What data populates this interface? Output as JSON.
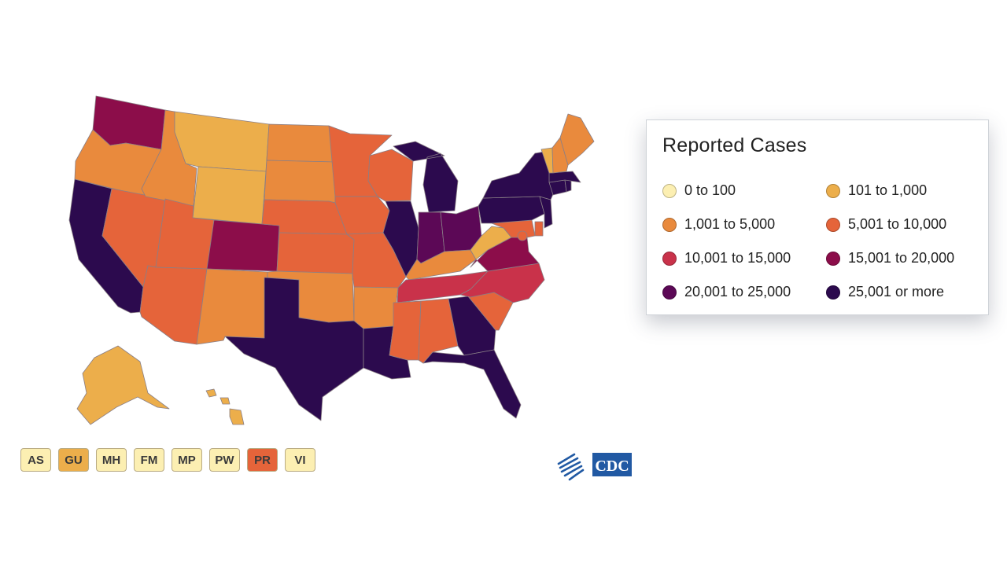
{
  "legend": {
    "title": "Reported Cases",
    "items": [
      {
        "label": "0 to 100",
        "color": "#fcefb2"
      },
      {
        "label": "101 to 1,000",
        "color": "#ecae4b"
      },
      {
        "label": "1,001 to 5,000",
        "color": "#e98a3d"
      },
      {
        "label": "5,001 to 10,000",
        "color": "#e5643a"
      },
      {
        "label": "10,001 to 15,000",
        "color": "#c9324a"
      },
      {
        "label": "15,001 to 20,000",
        "color": "#8c0d4a"
      },
      {
        "label": "20,001 to 25,000",
        "color": "#5c0856"
      },
      {
        "label": "25,001 or more",
        "color": "#2c0a4e"
      }
    ]
  },
  "territories": [
    {
      "label": "AS",
      "color": "#fcefb2"
    },
    {
      "label": "GU",
      "color": "#ecae4b"
    },
    {
      "label": "MH",
      "color": "#fcefb2"
    },
    {
      "label": "FM",
      "color": "#fcefb2"
    },
    {
      "label": "MP",
      "color": "#fcefb2"
    },
    {
      "label": "PW",
      "color": "#fcefb2"
    },
    {
      "label": "PR",
      "color": "#e5643a"
    },
    {
      "label": "VI",
      "color": "#fcefb2"
    }
  ],
  "states": [
    {
      "id": "WA",
      "level": 5
    },
    {
      "id": "OR",
      "level": 2
    },
    {
      "id": "CA",
      "level": 7
    },
    {
      "id": "NV",
      "level": 3
    },
    {
      "id": "ID",
      "level": 2
    },
    {
      "id": "MT",
      "level": 1
    },
    {
      "id": "WY",
      "level": 1
    },
    {
      "id": "UT",
      "level": 3
    },
    {
      "id": "AZ",
      "level": 3
    },
    {
      "id": "CO",
      "level": 5
    },
    {
      "id": "NM",
      "level": 2
    },
    {
      "id": "ND",
      "level": 2
    },
    {
      "id": "SD",
      "level": 2
    },
    {
      "id": "NE",
      "level": 3
    },
    {
      "id": "KS",
      "level": 3
    },
    {
      "id": "OK",
      "level": 2
    },
    {
      "id": "TX",
      "level": 7
    },
    {
      "id": "MN",
      "level": 3
    },
    {
      "id": "IA",
      "level": 3
    },
    {
      "id": "MO",
      "level": 3
    },
    {
      "id": "AR",
      "level": 2
    },
    {
      "id": "LA",
      "level": 7
    },
    {
      "id": "WI",
      "level": 3
    },
    {
      "id": "IL",
      "level": 7
    },
    {
      "id": "MI",
      "level": 7
    },
    {
      "id": "IN",
      "level": 6
    },
    {
      "id": "OH",
      "level": 6
    },
    {
      "id": "KY",
      "level": 2
    },
    {
      "id": "TN",
      "level": 4
    },
    {
      "id": "MS",
      "level": 3
    },
    {
      "id": "AL",
      "level": 3
    },
    {
      "id": "GA",
      "level": 7
    },
    {
      "id": "FL",
      "level": 7
    },
    {
      "id": "SC",
      "level": 3
    },
    {
      "id": "NC",
      "level": 4
    },
    {
      "id": "VA",
      "level": 5
    },
    {
      "id": "WV",
      "level": 1
    },
    {
      "id": "MD",
      "level": 3
    },
    {
      "id": "DE",
      "level": 3
    },
    {
      "id": "DC",
      "level": 3
    },
    {
      "id": "PA",
      "level": 7
    },
    {
      "id": "NJ",
      "level": 7
    },
    {
      "id": "NY",
      "level": 7
    },
    {
      "id": "CT",
      "level": 7
    },
    {
      "id": "RI",
      "level": 7
    },
    {
      "id": "MA",
      "level": 7
    },
    {
      "id": "VT",
      "level": 1
    },
    {
      "id": "NH",
      "level": 2
    },
    {
      "id": "ME",
      "level": 2
    },
    {
      "id": "AK",
      "level": 1
    },
    {
      "id": "HI",
      "level": 1
    }
  ]
}
